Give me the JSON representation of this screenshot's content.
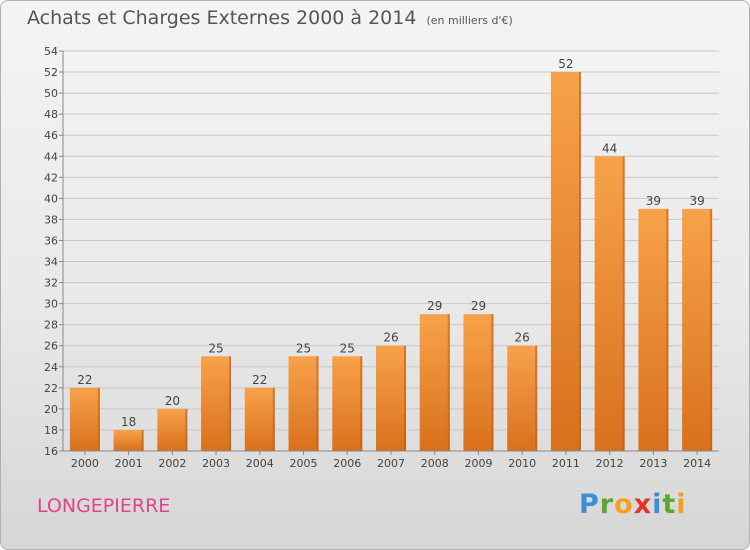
{
  "header": {
    "title": "Achats et Charges Externes 2000 à 2014",
    "unit": "(en milliers d'€)"
  },
  "footer": {
    "commune": "LONGEPIERRE",
    "logo": "Proxiti",
    "logo_icon": "proxiti-logo-icon"
  },
  "colors": {
    "bar_light": "#f7a24a",
    "bar_dark": "#d9701c",
    "bar_side": "#ba5e14",
    "grid": "#c8c8c8",
    "axis_text": "#444444",
    "title": "#555555",
    "commune": "#e0448a"
  },
  "chart_data": {
    "type": "bar",
    "title": "Achats et Charges Externes 2000 à 2014",
    "xlabel": "",
    "ylabel": "",
    "categories": [
      "2000",
      "2001",
      "2002",
      "2003",
      "2004",
      "2005",
      "2006",
      "2007",
      "2008",
      "2009",
      "2010",
      "2011",
      "2012",
      "2013",
      "2014"
    ],
    "values": [
      22,
      18,
      20,
      25,
      22,
      25,
      25,
      26,
      29,
      29,
      26,
      52,
      44,
      39,
      39
    ],
    "ylim": [
      16,
      54
    ],
    "yticks": [
      16,
      18,
      20,
      22,
      24,
      26,
      28,
      30,
      32,
      34,
      36,
      38,
      40,
      42,
      44,
      46,
      48,
      50,
      52,
      54
    ],
    "grid": true,
    "legend": "none"
  }
}
